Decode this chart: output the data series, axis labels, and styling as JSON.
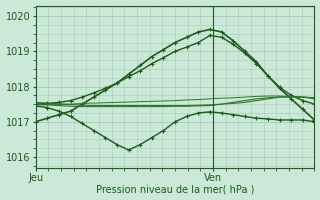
{
  "bg_color": "#cce8d8",
  "grid_color": "#a8cbb8",
  "line_color_dark": "#1a5c1a",
  "line_color_medium": "#2a7a2a",
  "xlabel": "Pression niveau de la mer( hPa )",
  "ylim": [
    1015.7,
    1020.3
  ],
  "yticks": [
    1016,
    1017,
    1018,
    1019,
    1020
  ],
  "xtick_labels": [
    "Jeu",
    "Ven"
  ],
  "xtick_pos": [
    0.0,
    0.635
  ],
  "vline_x": 0.635,
  "n_points": 25,
  "series": [
    {
      "y": [
        1017.0,
        1017.1,
        1017.2,
        1017.3,
        1017.5,
        1017.7,
        1017.9,
        1018.1,
        1018.35,
        1018.6,
        1018.85,
        1019.05,
        1019.25,
        1019.4,
        1019.55,
        1019.62,
        1019.55,
        1019.3,
        1019.0,
        1018.7,
        1018.3,
        1017.95,
        1017.65,
        1017.35,
        1017.05
      ],
      "color": "#1a5c1a",
      "lw": 1.2,
      "marker": true
    },
    {
      "y": [
        1017.45,
        1017.4,
        1017.3,
        1017.15,
        1016.95,
        1016.75,
        1016.55,
        1016.35,
        1016.2,
        1016.35,
        1016.55,
        1016.75,
        1017.0,
        1017.15,
        1017.25,
        1017.28,
        1017.25,
        1017.2,
        1017.15,
        1017.1,
        1017.08,
        1017.05,
        1017.05,
        1017.05,
        1017.0
      ],
      "color": "#1a5c1a",
      "lw": 1.0,
      "marker": true
    },
    {
      "y": [
        1017.5,
        1017.48,
        1017.46,
        1017.44,
        1017.43,
        1017.43,
        1017.43,
        1017.43,
        1017.43,
        1017.43,
        1017.43,
        1017.43,
        1017.44,
        1017.44,
        1017.45,
        1017.46,
        1017.5,
        1017.55,
        1017.6,
        1017.65,
        1017.68,
        1017.7,
        1017.7,
        1017.7,
        1017.68
      ],
      "color": "#2a7a2a",
      "lw": 0.8,
      "marker": false
    },
    {
      "y": [
        1017.5,
        1017.52,
        1017.55,
        1017.6,
        1017.7,
        1017.82,
        1017.95,
        1018.1,
        1018.28,
        1018.45,
        1018.65,
        1018.82,
        1019.0,
        1019.12,
        1019.25,
        1019.45,
        1019.4,
        1019.2,
        1018.95,
        1018.65,
        1018.3,
        1017.98,
        1017.75,
        1017.6,
        1017.5
      ],
      "color": "#1a5c1a",
      "lw": 1.0,
      "marker": true
    },
    {
      "y": [
        1017.55,
        1017.53,
        1017.51,
        1017.49,
        1017.47,
        1017.46,
        1017.46,
        1017.46,
        1017.46,
        1017.46,
        1017.46,
        1017.46,
        1017.46,
        1017.46,
        1017.47,
        1017.48,
        1017.5,
        1017.52,
        1017.55,
        1017.6,
        1017.65,
        1017.7,
        1017.72,
        1017.7,
        1017.65
      ],
      "color": "#2a7a2a",
      "lw": 0.8,
      "marker": false
    },
    {
      "y": [
        1017.48,
        1017.48,
        1017.49,
        1017.5,
        1017.52,
        1017.53,
        1017.54,
        1017.55,
        1017.56,
        1017.57,
        1017.58,
        1017.59,
        1017.6,
        1017.62,
        1017.63,
        1017.65,
        1017.67,
        1017.68,
        1017.7,
        1017.72,
        1017.73,
        1017.73,
        1017.72,
        1017.7,
        1017.68
      ],
      "color": "#2a7a2a",
      "lw": 0.7,
      "marker": false
    }
  ]
}
